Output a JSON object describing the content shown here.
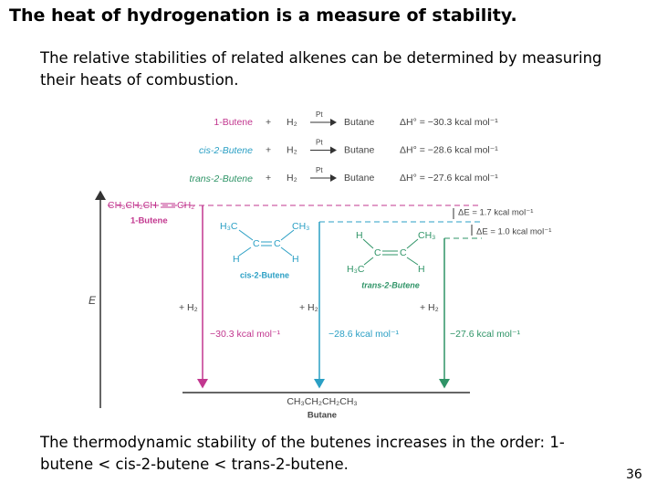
{
  "title": "The heat of hydrogenation is a measure of stability.",
  "intro": "The relative stabilities of related alkenes can be determined by measuring their heats of combustion.",
  "diagram": {
    "reactions": [
      {
        "alkene": "1-Butene",
        "plus": "+",
        "h2": "H₂",
        "catalyst": "Pt",
        "product": "Butane",
        "dh": "ΔH° = −30.3 kcal mol⁻¹"
      },
      {
        "alkene": "cis-2-Butene",
        "plus": "+",
        "h2": "H₂",
        "catalyst": "Pt",
        "product": "Butane",
        "dh": "ΔH° = −28.6 kcal mol⁻¹"
      },
      {
        "alkene": "trans-2-Butene",
        "plus": "+",
        "h2": "H₂",
        "catalyst": "Pt",
        "product": "Butane",
        "dh": "ΔH° = −27.6 kcal mol⁻¹"
      }
    ],
    "axis_label": "E",
    "one_butene": {
      "formula_left": "CH₃CH₂CH",
      "formula_right": "CH₂",
      "name": "1-Butene"
    },
    "cis": {
      "atoms": [
        "H₃C",
        "CH₃",
        "C",
        "C",
        "H",
        "H"
      ],
      "name": "cis-2-Butene"
    },
    "trans": {
      "atoms": [
        "H",
        "CH₃",
        "C",
        "C",
        "H₃C",
        "H"
      ],
      "name": "trans-2-Butene"
    },
    "delta_e": [
      "ΔE = 1.7 kcal mol⁻¹",
      "ΔE = 1.0 kcal mol⁻¹"
    ],
    "plus_h2": [
      "+ H₂",
      "+ H₂",
      "+ H₂"
    ],
    "heats": [
      "−30.3 kcal mol⁻¹",
      "−28.6 kcal mol⁻¹",
      "−27.6 kcal mol⁻¹"
    ],
    "butane": {
      "formula": "CH₃CH₂CH₂CH₃",
      "name": "Butane"
    }
  },
  "conclusion": "The thermodynamic stability of the butenes increases in the order: 1-butene < cis-2-butene < trans-2-butene.",
  "page_number": "36"
}
